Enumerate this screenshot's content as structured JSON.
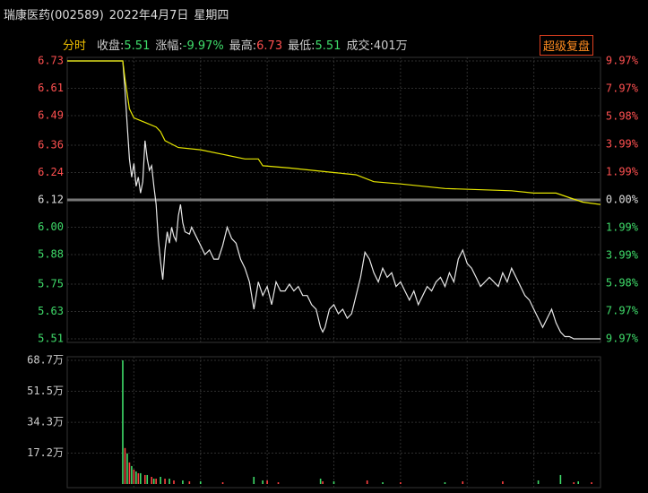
{
  "header": {
    "title": "瑞康医药(002589)",
    "date": "2022年4月7日",
    "weekday": "星期四"
  },
  "toolbar": {
    "mode": "分时",
    "stats": [
      {
        "label": "收盘:",
        "value": "5.51",
        "color": "#3fdc6a"
      },
      {
        "label": "涨幅:",
        "value": "-9.97%",
        "color": "#3fdc6a"
      },
      {
        "label": "最高:",
        "value": "6.73",
        "color": "#ff5050"
      },
      {
        "label": "最低:",
        "value": "5.51",
        "color": "#3fdc6a"
      },
      {
        "label": "成交:",
        "value": "401万",
        "color": "#cccccc"
      }
    ],
    "button": "超级复盘"
  },
  "chart_data": [
    {
      "type": "line",
      "xlim": [
        0,
        240
      ],
      "ylim": [
        5.51,
        6.73
      ],
      "yticks": [
        6.73,
        6.61,
        6.49,
        6.36,
        6.24,
        6.12,
        {
          "value": 6,
          "label": "6.00"
        },
        5.88,
        5.75,
        5.63,
        5.51
      ],
      "y2lim": [
        -9.97,
        9.97
      ],
      "y2ticks": [
        {
          "value": 9.97,
          "label": "9.97%"
        },
        {
          "value": 7.97,
          "label": "7.97%"
        },
        {
          "value": 5.98,
          "label": "5.98%"
        },
        {
          "value": 3.99,
          "label": "3.99%"
        },
        {
          "value": 1.99,
          "label": "1.99%"
        },
        {
          "value": 0,
          "label": "0.00%"
        },
        {
          "value": -1.99,
          "label": "1.99%"
        },
        {
          "value": -3.99,
          "label": "3.99%"
        },
        {
          "value": -5.98,
          "label": "5.98%"
        },
        {
          "value": -7.97,
          "label": "7.97%"
        },
        {
          "value": -9.97,
          "label": "9.97%"
        }
      ],
      "grid": true,
      "series": [
        {
          "color": "#e8e8e8",
          "x": [
            0,
            25,
            26,
            27,
            28,
            29,
            30,
            31,
            32,
            33,
            34,
            35,
            36,
            37,
            38,
            39,
            40,
            41,
            42,
            43,
            44,
            45,
            46,
            47,
            48,
            49,
            50,
            51,
            52,
            53,
            55,
            56,
            58,
            60,
            62,
            64,
            66,
            68,
            70,
            72,
            74,
            76,
            78,
            80,
            82,
            84,
            86,
            88,
            90,
            92,
            94,
            96,
            98,
            100,
            102,
            104,
            106,
            108,
            110,
            112,
            114,
            115,
            116,
            118,
            120,
            122,
            124,
            126,
            128,
            130,
            132,
            134,
            136,
            138,
            140,
            142,
            144,
            146,
            148,
            150,
            152,
            154,
            156,
            158,
            160,
            162,
            164,
            166,
            168,
            170,
            172,
            174,
            176,
            178,
            180,
            182,
            184,
            186,
            188,
            190,
            192,
            194,
            196,
            198,
            200,
            202,
            204,
            206,
            208,
            210,
            212,
            214,
            216,
            218,
            220,
            222,
            224,
            226,
            228,
            230,
            240
          ],
          "values": [
            6.73,
            6.73,
            6.6,
            6.45,
            6.3,
            6.22,
            6.28,
            6.18,
            6.22,
            6.15,
            6.2,
            6.38,
            6.3,
            6.25,
            6.27,
            6.18,
            6.1,
            5.95,
            5.85,
            5.77,
            5.9,
            5.98,
            5.93,
            6,
            5.96,
            5.94,
            6.05,
            6.1,
            6.02,
            5.98,
            5.97,
            6,
            5.96,
            5.92,
            5.88,
            5.9,
            5.86,
            5.86,
            5.92,
            6,
            5.95,
            5.93,
            5.86,
            5.82,
            5.76,
            5.64,
            5.76,
            5.7,
            5.74,
            5.66,
            5.76,
            5.72,
            5.72,
            5.75,
            5.72,
            5.74,
            5.7,
            5.7,
            5.66,
            5.64,
            5.56,
            5.54,
            5.56,
            5.64,
            5.66,
            5.62,
            5.64,
            5.6,
            5.62,
            5.7,
            5.78,
            5.89,
            5.86,
            5.8,
            5.76,
            5.82,
            5.78,
            5.8,
            5.74,
            5.76,
            5.72,
            5.68,
            5.72,
            5.66,
            5.7,
            5.74,
            5.72,
            5.76,
            5.78,
            5.74,
            5.8,
            5.76,
            5.86,
            5.9,
            5.84,
            5.82,
            5.78,
            5.74,
            5.76,
            5.78,
            5.76,
            5.74,
            5.8,
            5.76,
            5.82,
            5.78,
            5.74,
            5.7,
            5.68,
            5.64,
            5.6,
            5.56,
            5.6,
            5.64,
            5.58,
            5.54,
            5.52,
            5.52,
            5.51,
            5.51,
            5.51
          ]
        },
        {
          "color": "#e6e600",
          "x": [
            0,
            25,
            26,
            28,
            30,
            35,
            40,
            42,
            44,
            50,
            60,
            70,
            80,
            86,
            88,
            100,
            120,
            130,
            138,
            150,
            170,
            200,
            210,
            220,
            226,
            232,
            240
          ],
          "values": [
            6.73,
            6.73,
            6.65,
            6.52,
            6.48,
            6.46,
            6.44,
            6.42,
            6.38,
            6.35,
            6.34,
            6.32,
            6.3,
            6.3,
            6.27,
            6.26,
            6.24,
            6.23,
            6.2,
            6.19,
            6.17,
            6.16,
            6.15,
            6.15,
            6.13,
            6.11,
            6.1
          ]
        }
      ]
    },
    {
      "type": "bar",
      "xlim": [
        0,
        240
      ],
      "ylim": [
        0,
        68.7
      ],
      "yticks": [
        {
          "value": 68.7,
          "label": "68.7万"
        },
        {
          "value": 51.5,
          "label": "51.5万"
        },
        {
          "value": 34.3,
          "label": "34.3万"
        },
        {
          "value": 17.2,
          "label": "17.2万"
        }
      ],
      "grid": true,
      "series": [
        {
          "color": "#3fdc6a",
          "x": [
            25,
            27,
            29,
            31,
            33,
            36,
            39,
            42,
            46,
            52,
            60,
            84,
            88,
            114,
            120,
            142,
            170,
            212,
            222,
            230
          ],
          "values": [
            68.7,
            17,
            10,
            7,
            6,
            5,
            3,
            4,
            3,
            2,
            1.5,
            4,
            2,
            3,
            1.5,
            1,
            1,
            2,
            5,
            1.5
          ]
        },
        {
          "color": "#ff4040",
          "x": [
            26,
            28,
            30,
            32,
            35,
            38,
            40,
            44,
            48,
            55,
            70,
            90,
            95,
            115,
            135,
            150,
            178,
            196,
            228,
            236
          ],
          "values": [
            20,
            12,
            8,
            6,
            5,
            4,
            3,
            3,
            2,
            1.5,
            1,
            2,
            1,
            1.5,
            2,
            1,
            1.5,
            1.5,
            1,
            1
          ]
        }
      ]
    }
  ]
}
